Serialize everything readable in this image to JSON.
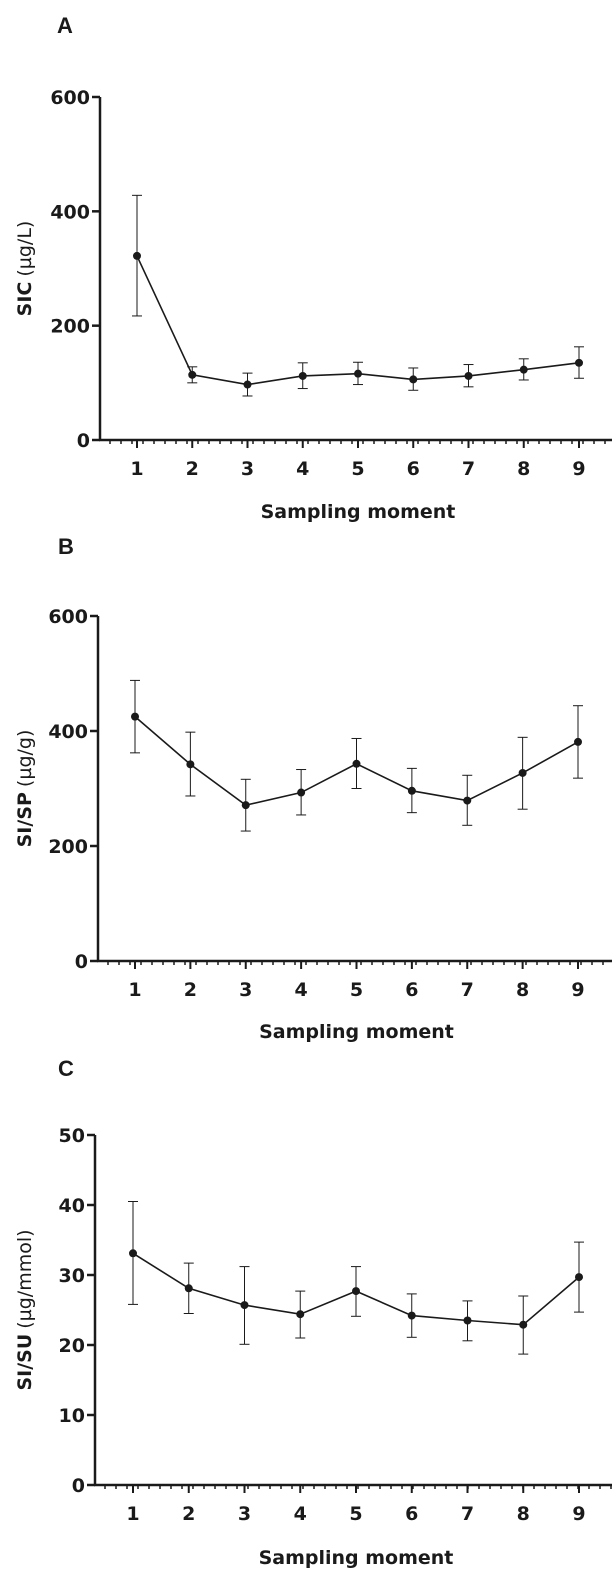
{
  "colors": {
    "ink": "#1a1a1a",
    "marker": "#1a1a1a"
  },
  "chart_data": [
    {
      "panel_label": "A",
      "type": "line",
      "title": "",
      "xlabel": "Sampling moment",
      "ylabel_main": "SIC",
      "ylabel_unit": "(µg/L)",
      "categories": [
        "1",
        "2",
        "3",
        "4",
        "5",
        "6",
        "7",
        "8",
        "9"
      ],
      "values": [
        322,
        114,
        97,
        112,
        116,
        106,
        112,
        123,
        135
      ],
      "err_upper": [
        428,
        128,
        117,
        135,
        136,
        126,
        132,
        142,
        163
      ],
      "err_lower": [
        217,
        100,
        77,
        90,
        97,
        87,
        93,
        105,
        108
      ],
      "ylim": [
        0,
        600
      ],
      "yticks": [
        0,
        200,
        400,
        600
      ],
      "grid": false,
      "legend": "none"
    },
    {
      "panel_label": "B",
      "type": "line",
      "title": "",
      "xlabel": "Sampling moment",
      "ylabel_main": "SI/SP",
      "ylabel_unit": "(µg/g)",
      "categories": [
        "1",
        "2",
        "3",
        "4",
        "5",
        "6",
        "7",
        "8",
        "9"
      ],
      "values": [
        425,
        342,
        271,
        293,
        343,
        296,
        279,
        327,
        381
      ],
      "err_upper": [
        488,
        398,
        316,
        333,
        387,
        335,
        323,
        389,
        444
      ],
      "err_lower": [
        362,
        287,
        226,
        254,
        300,
        258,
        236,
        264,
        318
      ],
      "ylim": [
        0,
        600
      ],
      "yticks": [
        0,
        200,
        400,
        600
      ],
      "grid": false,
      "legend": "none"
    },
    {
      "panel_label": "C",
      "type": "line",
      "title": "",
      "xlabel": "Sampling moment",
      "ylabel_main": "SI/SU",
      "ylabel_unit": "(µg/mmol)",
      "categories": [
        "1",
        "2",
        "3",
        "4",
        "5",
        "6",
        "7",
        "8",
        "9"
      ],
      "values": [
        33.1,
        28.1,
        25.7,
        24.4,
        27.7,
        24.2,
        23.5,
        22.9,
        29.7
      ],
      "err_upper": [
        40.5,
        31.7,
        31.2,
        27.7,
        31.2,
        27.3,
        26.3,
        27.0,
        34.7
      ],
      "err_lower": [
        25.8,
        24.5,
        20.1,
        21.0,
        24.1,
        21.1,
        20.6,
        18.7,
        24.7
      ],
      "ylim": [
        0,
        50
      ],
      "yticks": [
        0,
        10,
        20,
        30,
        40,
        50
      ],
      "grid": false,
      "legend": "none"
    }
  ]
}
